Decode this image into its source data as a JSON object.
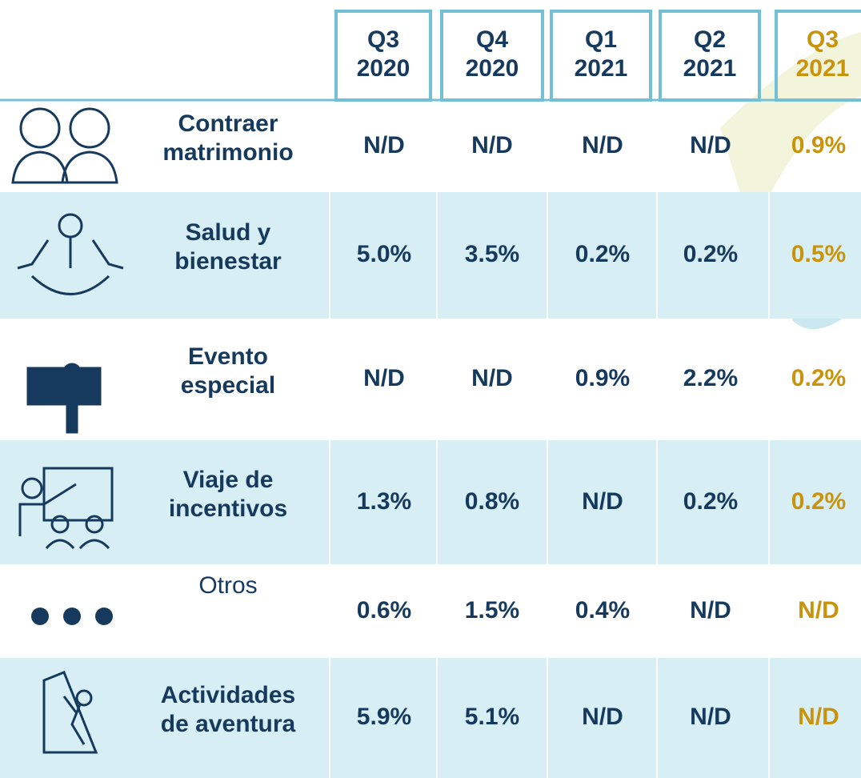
{
  "header": {
    "columns": [
      {
        "quarter": "Q3",
        "year": "2020"
      },
      {
        "quarter": "Q4",
        "year": "2020"
      },
      {
        "quarter": "Q1",
        "year": "2021"
      },
      {
        "quarter": "Q2",
        "year": "2021"
      },
      {
        "quarter": "Q3",
        "year": "2021"
      }
    ]
  },
  "table": {
    "rows": [
      {
        "label": [
          "Contraer",
          "matrimonio"
        ],
        "values": [
          "N/D",
          "N/D",
          "N/D",
          "N/D",
          "0.9%"
        ]
      },
      {
        "label": [
          "Salud y",
          "bienestar"
        ],
        "values": [
          "5.0%",
          "3.5%",
          "0.2%",
          "0.2%",
          "0.5%"
        ]
      },
      {
        "label": [
          "Evento",
          "especial"
        ],
        "values": [
          "N/D",
          "N/D",
          "0.9%",
          "2.2%",
          "0.2%"
        ]
      },
      {
        "label": [
          "Viaje de",
          "incentivos"
        ],
        "values": [
          "1.3%",
          "0.8%",
          "N/D",
          "0.2%",
          "0.2%"
        ]
      },
      {
        "label": [
          "Otros"
        ],
        "values": [
          "0.6%",
          "1.5%",
          "0.4%",
          "N/D",
          "N/D"
        ]
      },
      {
        "label": [
          "Actividades",
          "de aventura"
        ],
        "values": [
          "5.9%",
          "5.1%",
          "N/D",
          "N/D",
          "N/D"
        ]
      }
    ]
  }
}
